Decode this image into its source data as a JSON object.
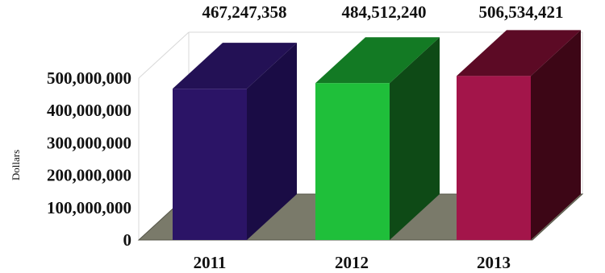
{
  "chart_data": {
    "type": "bar",
    "style": "3d-column",
    "categories": [
      "2011",
      "2012",
      "2013"
    ],
    "values": [
      467247358,
      484512240,
      506534421
    ],
    "data_labels": [
      "467,247,358",
      "484,512,240",
      "506,534,421"
    ],
    "ylabel": "Dollars",
    "ylim": [
      0,
      500000000
    ],
    "yticks": [
      0,
      100000000,
      200000000,
      300000000,
      400000000,
      500000000
    ],
    "ytick_labels": [
      "0",
      "100,000,000",
      "200,000,000",
      "300,000,000",
      "400,000,000",
      "500,000,000"
    ],
    "grid": false,
    "legend": "none",
    "colors": {
      "bars": [
        {
          "front": "#2b1466",
          "side": "#1a0c45",
          "top": "#231155"
        },
        {
          "front": "#1fbf3a",
          "side": "#0e4a16",
          "top": "#137a24"
        },
        {
          "front": "#a3154a",
          "side": "#3d0616",
          "top": "#5c0a25"
        }
      ],
      "floor": "#7a7a6a",
      "wall_line": "#d8d8d8"
    }
  }
}
